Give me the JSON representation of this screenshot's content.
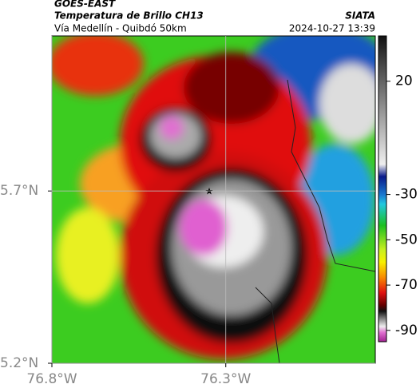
{
  "header": {
    "title": "GOES-EAST",
    "subtitle": "Temperatura de Brillo CH13",
    "source": "SIATA",
    "route": "Vía Medellín - Quibdó 50km",
    "timestamp": "2024-10-27 13:39"
  },
  "map": {
    "lat_lim": [
      5.2,
      6.15
    ],
    "lon_lim": [
      -76.8,
      -75.87
    ],
    "lat_ticks": [
      {
        "value": 5.7,
        "label": "5.7°N"
      },
      {
        "value": 5.2,
        "label": "5.2°N"
      }
    ],
    "lon_ticks": [
      {
        "value": -76.8,
        "label": "76.8°W"
      },
      {
        "value": -76.3,
        "label": "76.3°W"
      }
    ],
    "grid": true
  },
  "colorbar": {
    "lim": [
      -95,
      40
    ],
    "ticks": [
      20,
      -30,
      -50,
      -70,
      -90
    ]
  }
}
